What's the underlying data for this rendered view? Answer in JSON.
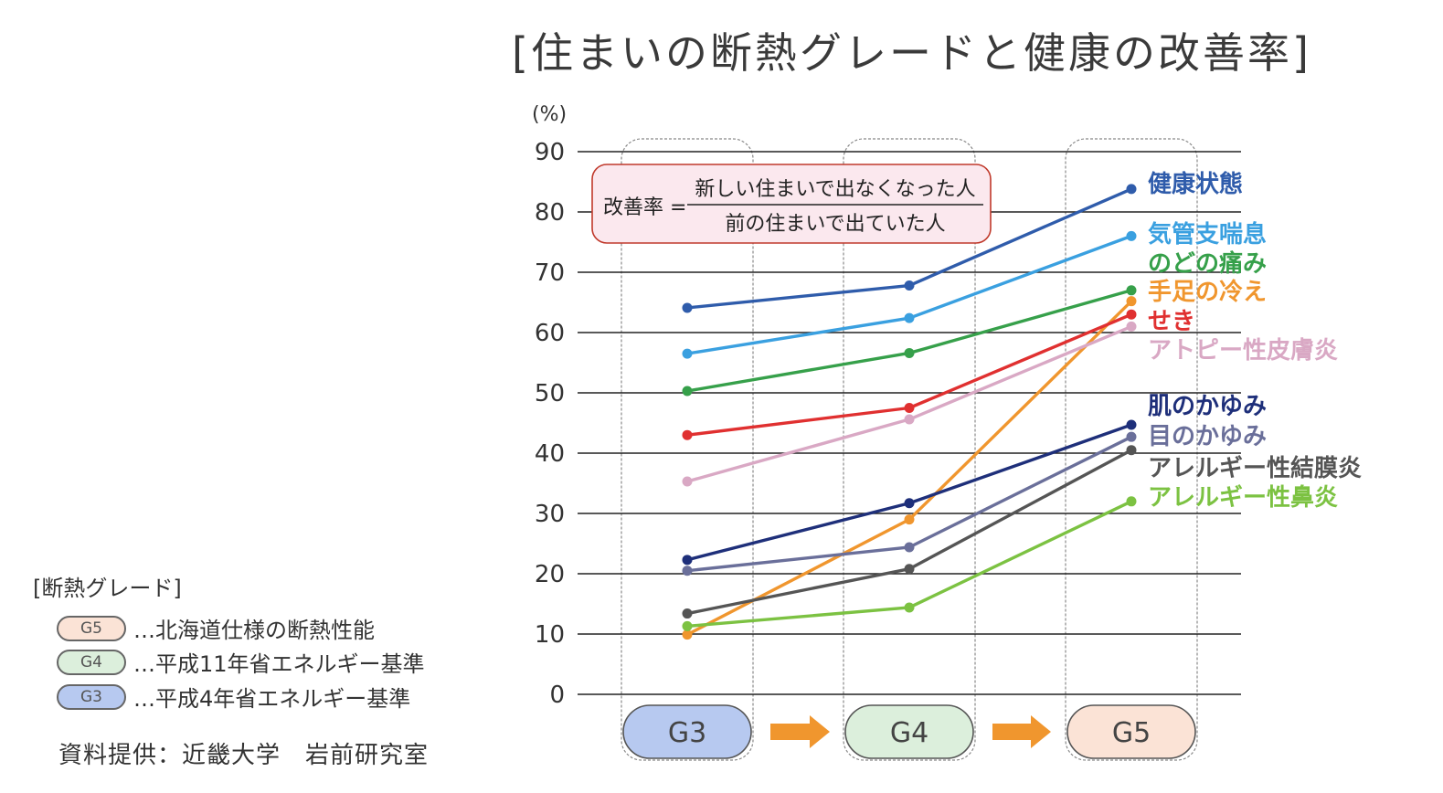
{
  "colors": {
    "grid": "#222222",
    "frame": "#888888",
    "formula_bg": "#fbe8ee",
    "formula_border": "#c0392b",
    "g3": "#b7c9f0",
    "g4": "#dcefdc",
    "g5": "#fbe3d6",
    "arrow": "#f0962e"
  },
  "title": "[住まいの断熱グレードと健康の改善率]",
  "formula": {
    "lhs": "改善率 =",
    "numerator": "新しい住まいで出なくなった人",
    "denominator": "前の住まいで出ていた人"
  },
  "legend": {
    "heading": "[断熱グレード]",
    "items": [
      {
        "grade": "G5",
        "desc": "…北海道仕様の断熱性能",
        "color": "#fbe3d6"
      },
      {
        "grade": "G4",
        "desc": "…平成11年省エネルギー基準",
        "color": "#dcefdc"
      },
      {
        "grade": "G3",
        "desc": "…平成4年省エネルギー基準",
        "color": "#b7c9f0"
      }
    ]
  },
  "credit": "資料提供：近畿大学　岩前研究室",
  "chart_data": {
    "type": "line",
    "title": "[住まいの断熱グレードと健康の改善率]",
    "ylabel": "(%)",
    "xlabel": "",
    "categories": [
      "G3",
      "G4",
      "G5"
    ],
    "ylim": [
      0,
      90
    ],
    "yticks": [
      0,
      10,
      20,
      30,
      40,
      50,
      60,
      70,
      80,
      90
    ],
    "grid": true,
    "legend": "right",
    "series": [
      {
        "name": "健康状態",
        "color": "#2f5cab",
        "values": [
          64.1,
          67.8,
          83.8
        ]
      },
      {
        "name": "気管支喘息",
        "color": "#3aa0e0",
        "values": [
          56.5,
          62.4,
          76.0
        ]
      },
      {
        "name": "のどの痛み",
        "color": "#36a04a",
        "values": [
          50.3,
          56.6,
          67.0
        ]
      },
      {
        "name": "手足の冷え",
        "color": "#f0962e",
        "values": [
          9.9,
          29.0,
          65.2
        ]
      },
      {
        "name": "せき",
        "color": "#e03030",
        "values": [
          43.0,
          47.5,
          63.0
        ]
      },
      {
        "name": "アトピー性皮膚炎",
        "color": "#d9a8c4",
        "values": [
          35.3,
          45.6,
          61.0
        ]
      },
      {
        "name": "肌のかゆみ",
        "color": "#1e2f7a",
        "values": [
          22.3,
          31.7,
          44.7
        ]
      },
      {
        "name": "目のかゆみ",
        "color": "#6a6f9a",
        "values": [
          20.5,
          24.4,
          42.7
        ]
      },
      {
        "name": "アレルギー性結膜炎",
        "color": "#555555",
        "values": [
          13.4,
          20.8,
          40.5
        ]
      },
      {
        "name": "アレルギー性鼻炎",
        "color": "#7cc242",
        "values": [
          11.3,
          14.4,
          32.0
        ]
      }
    ]
  }
}
